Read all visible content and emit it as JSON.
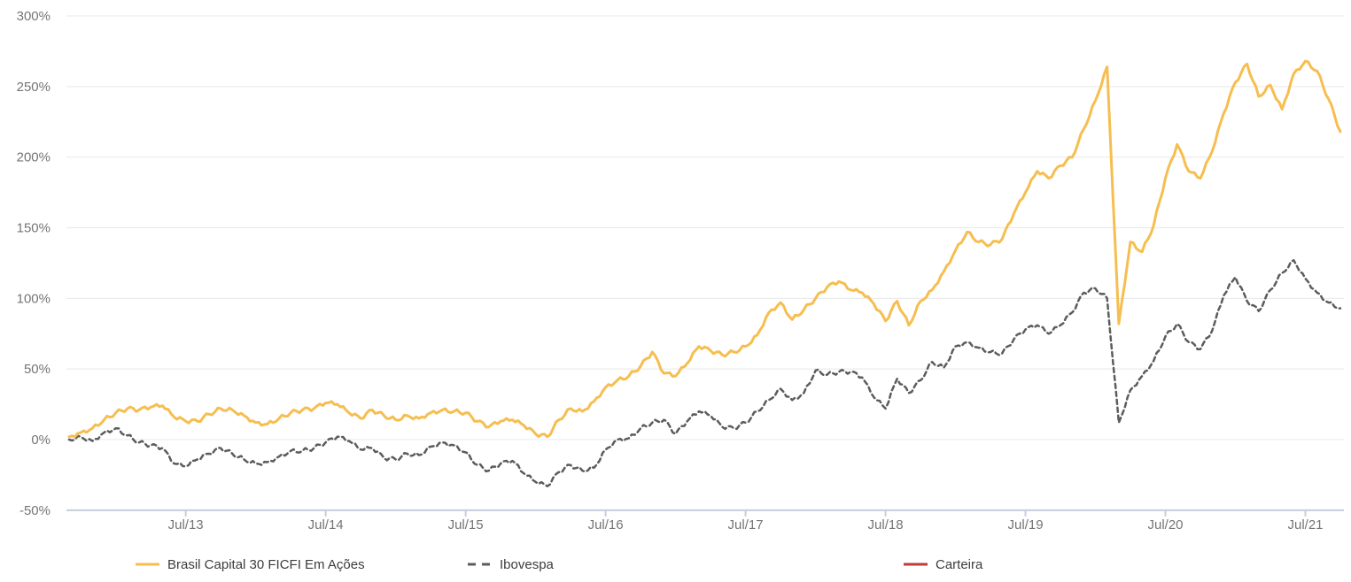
{
  "colors": {
    "background": "#FFFFFF",
    "gridline": "#E8E8E8",
    "axis_line": "#C4CEDE",
    "tick_label": "#757575",
    "legend_label": "#3C3C3C",
    "fund_line": "#F6BE4F",
    "benchmark_line": "#5C5C5C",
    "portfolio_line": "#C0393B"
  },
  "chart_data": {
    "type": "line",
    "title": "",
    "xlabel": "",
    "ylabel": "",
    "x_unit": "month",
    "x_start": "2012-09",
    "x_end": "2021-10",
    "ylim": [
      -50,
      300
    ],
    "grid": true,
    "legend_position": "bottom",
    "y_ticks": [
      {
        "value": 300,
        "label": "300%"
      },
      {
        "value": 250,
        "label": "250%"
      },
      {
        "value": 200,
        "label": "200%"
      },
      {
        "value": 150,
        "label": "150%"
      },
      {
        "value": 100,
        "label": "100%"
      },
      {
        "value": 50,
        "label": "50%"
      },
      {
        "value": 0,
        "label": "0%"
      },
      {
        "value": -50,
        "label": "-50%"
      }
    ],
    "x_ticks": [
      {
        "i": 10,
        "label": "Jul/13"
      },
      {
        "i": 22,
        "label": "Jul/14"
      },
      {
        "i": 34,
        "label": "Jul/15"
      },
      {
        "i": 46,
        "label": "Jul/16"
      },
      {
        "i": 58,
        "label": "Jul/17"
      },
      {
        "i": 70,
        "label": "Jul/18"
      },
      {
        "i": 82,
        "label": "Jul/19"
      },
      {
        "i": 94,
        "label": "Jul/20"
      },
      {
        "i": 106,
        "label": "Jul/21"
      }
    ],
    "series": [
      {
        "name": "Brasil Capital 30 FICFI Em Ações",
        "color": "#F6BE4F",
        "style": "solid",
        "unit": "%",
        "values": [
          2,
          5,
          8,
          14,
          19,
          22,
          21,
          23,
          24,
          16,
          13,
          13,
          18,
          22,
          21,
          17,
          12,
          11,
          15,
          19,
          21,
          22,
          26,
          25,
          19,
          15,
          21,
          17,
          14,
          17,
          15,
          19,
          21,
          20,
          19,
          13,
          9,
          13,
          14,
          10,
          4,
          2,
          14,
          22,
          20,
          27,
          37,
          42,
          45,
          52,
          62,
          47,
          45,
          54,
          66,
          63,
          60,
          62,
          66,
          74,
          90,
          97,
          85,
          92,
          100,
          108,
          112,
          106,
          104,
          96,
          84,
          98,
          81,
          98,
          106,
          119,
          134,
          147,
          140,
          138,
          142,
          160,
          175,
          190,
          185,
          194,
          200,
          220,
          240,
          264,
          82,
          140,
          133,
          152,
          185,
          209,
          190,
          185,
          204,
          231,
          253,
          266,
          243,
          251,
          234,
          259,
          268,
          261,
          241,
          218
        ]
      },
      {
        "name": "Ibovespa",
        "color": "#5C5C5C",
        "style": "dashed",
        "unit": "%",
        "values": [
          0,
          2,
          -1,
          5,
          8,
          3,
          -2,
          -4,
          -6,
          -17,
          -19,
          -14,
          -10,
          -6,
          -10,
          -14,
          -17,
          -16,
          -12,
          -8,
          -8,
          -6,
          -2,
          2,
          -1,
          -7,
          -6,
          -13,
          -14,
          -10,
          -11,
          -5,
          -2,
          -4,
          -9,
          -18,
          -22,
          -17,
          -15,
          -24,
          -30,
          -33,
          -23,
          -18,
          -22,
          -20,
          -7,
          0,
          1,
          8,
          12,
          14,
          4,
          13,
          20,
          17,
          9,
          8,
          12,
          20,
          28,
          36,
          28,
          33,
          49,
          46,
          48,
          48,
          44,
          30,
          22,
          43,
          33,
          42,
          55,
          51,
          66,
          69,
          65,
          62,
          61,
          71,
          78,
          81,
          75,
          81,
          90,
          104,
          107,
          100,
          12,
          35,
          45,
          56,
          73,
          82,
          69,
          64,
          77,
          102,
          115,
          98,
          91,
          106,
          118,
          127,
          114,
          104,
          97,
          93
        ]
      },
      {
        "name": "Carteira",
        "color": "#C0393B",
        "style": "solid",
        "unit": "%",
        "values": []
      }
    ]
  },
  "legend": {
    "items": [
      {
        "label": "Brasil Capital 30 FICFI Em Ações"
      },
      {
        "label": "Ibovespa"
      },
      {
        "label": "Carteira"
      }
    ]
  }
}
